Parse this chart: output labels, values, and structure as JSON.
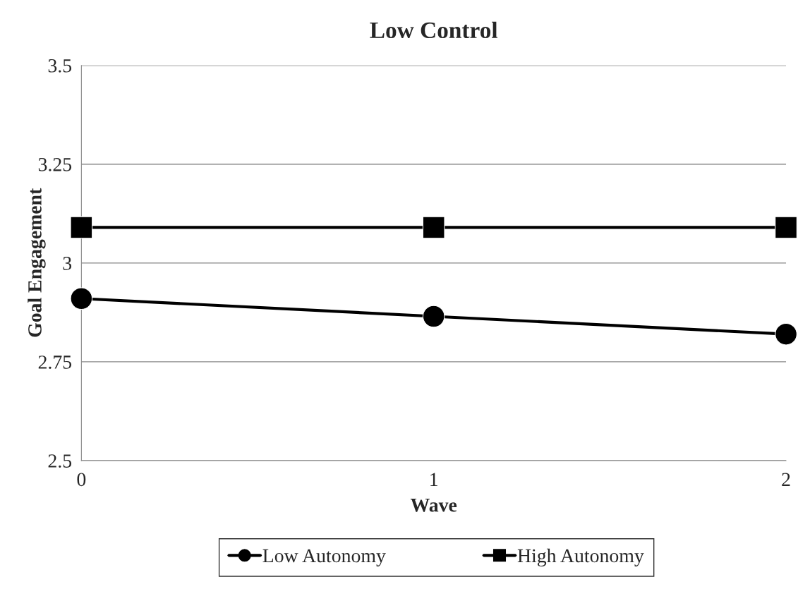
{
  "chart_data": {
    "type": "line",
    "title": "Low Control",
    "xlabel": "Wave",
    "ylabel": "Goal Engagement",
    "x": [
      0,
      1,
      2
    ],
    "series": [
      {
        "name": "Low Autonomy",
        "color": "#000000",
        "marker": "circle",
        "values": [
          2.91,
          2.865,
          2.82
        ]
      },
      {
        "name": "High Autonomy",
        "color": "#000000",
        "marker": "square",
        "values": [
          3.09,
          3.09,
          3.09
        ]
      }
    ],
    "xlim": [
      0,
      2
    ],
    "xticks": [
      0,
      1,
      2
    ],
    "ylim": [
      2.5,
      3.5
    ],
    "yticks": [
      2.5,
      2.75,
      3,
      3.25,
      3.5
    ],
    "grid": "y",
    "legend": "bottom",
    "line_style": "solid"
  }
}
